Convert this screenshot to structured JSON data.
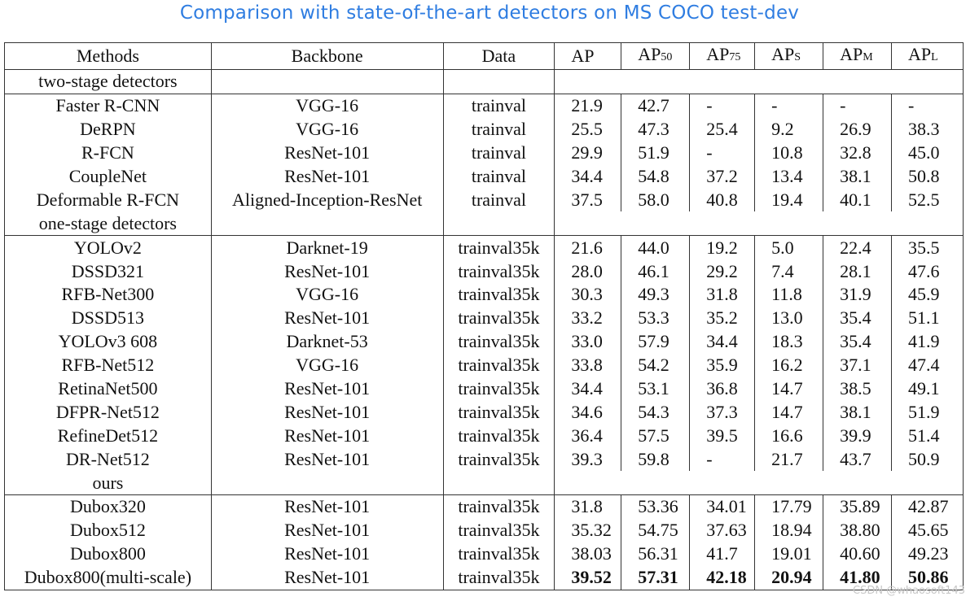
{
  "caption": "Comparison with state-of-the-art detectors on MS COCO test-dev",
  "watermark": "CSDN @whaosoft143",
  "headers": {
    "methods": "Methods",
    "backbone": "Backbone",
    "data": "Data",
    "ap": "AP",
    "ap50_main": "AP",
    "ap50_sub": "50",
    "ap75_main": "AP",
    "ap75_sub": "75",
    "aps_main": "AP",
    "aps_sub": "S",
    "apm_main": "AP",
    "apm_sub": "M",
    "apl_main": "AP",
    "apl_sub": "L"
  },
  "groups": [
    {
      "label": "two-stage detectors",
      "rows": [
        {
          "method": "Faster R-CNN",
          "backbone": "VGG-16",
          "data": "trainval",
          "ap": "21.9",
          "ap50": "42.7",
          "ap75": "-",
          "aps": "-",
          "apm": "-",
          "apl": "-"
        },
        {
          "method": "DeRPN",
          "backbone": "VGG-16",
          "data": "trainval",
          "ap": "25.5",
          "ap50": "47.3",
          "ap75": "25.4",
          "aps": "9.2",
          "apm": "26.9",
          "apl": "38.3"
        },
        {
          "method": "R-FCN",
          "backbone": "ResNet-101",
          "data": "trainval",
          "ap": "29.9",
          "ap50": "51.9",
          "ap75": "-",
          "aps": "10.8",
          "apm": "32.8",
          "apl": "45.0"
        },
        {
          "method": "CoupleNet",
          "backbone": "ResNet-101",
          "data": "trainval",
          "ap": "34.4",
          "ap50": "54.8",
          "ap75": "37.2",
          "aps": "13.4",
          "apm": "38.1",
          "apl": "50.8"
        },
        {
          "method": "Deformable R-FCN",
          "backbone": "Aligned-Inception-ResNet",
          "data": "trainval",
          "ap": "37.5",
          "ap50": "58.0",
          "ap75": "40.8",
          "aps": "19.4",
          "apm": "40.1",
          "apl": "52.5"
        }
      ]
    },
    {
      "label": "one-stage detectors",
      "rows": [
        {
          "method": "YOLOv2",
          "backbone": "Darknet-19",
          "data": "trainval35k",
          "ap": "21.6",
          "ap50": "44.0",
          "ap75": "19.2",
          "aps": "5.0",
          "apm": "22.4",
          "apl": "35.5"
        },
        {
          "method": "DSSD321",
          "backbone": "ResNet-101",
          "data": "trainval35k",
          "ap": "28.0",
          "ap50": "46.1",
          "ap75": "29.2",
          "aps": "7.4",
          "apm": "28.1",
          "apl": "47.6"
        },
        {
          "method": "RFB-Net300",
          "backbone": "VGG-16",
          "data": "trainval35k",
          "ap": "30.3",
          "ap50": "49.3",
          "ap75": "31.8",
          "aps": "11.8",
          "apm": "31.9",
          "apl": "45.9"
        },
        {
          "method": "DSSD513",
          "backbone": "ResNet-101",
          "data": "trainval35k",
          "ap": "33.2",
          "ap50": "53.3",
          "ap75": "35.2",
          "aps": "13.0",
          "apm": "35.4",
          "apl": "51.1"
        },
        {
          "method": "YOLOv3 608",
          "backbone": "Darknet-53",
          "data": "trainval35k",
          "ap": "33.0",
          "ap50": "57.9",
          "ap75": "34.4",
          "aps": "18.3",
          "apm": "35.4",
          "apl": "41.9"
        },
        {
          "method": "RFB-Net512",
          "backbone": "VGG-16",
          "data": "trainval35k",
          "ap": "33.8",
          "ap50": "54.2",
          "ap75": "35.9",
          "aps": "16.2",
          "apm": "37.1",
          "apl": "47.4"
        },
        {
          "method": "RetinaNet500",
          "backbone": "ResNet-101",
          "data": "trainval35k",
          "ap": "34.4",
          "ap50": "53.1",
          "ap75": "36.8",
          "aps": "14.7",
          "apm": "38.5",
          "apl": "49.1"
        },
        {
          "method": "DFPR-Net512",
          "backbone": "ResNet-101",
          "data": "trainval35k",
          "ap": "34.6",
          "ap50": "54.3",
          "ap75": "37.3",
          "aps": "14.7",
          "apm": "38.1",
          "apl": "51.9"
        },
        {
          "method": "RefineDet512",
          "backbone": "ResNet-101",
          "data": "trainval35k",
          "ap": "36.4",
          "ap50": "57.5",
          "ap75": "39.5",
          "aps": "16.6",
          "apm": "39.9",
          "apl": "51.4"
        },
        {
          "method": "DR-Net512",
          "backbone": "ResNet-101",
          "data": "trainval35k",
          "ap": "39.3",
          "ap50": "59.8",
          "ap75": "-",
          "aps": "21.7",
          "apm": "43.7",
          "apl": "50.9"
        }
      ]
    },
    {
      "label": "ours",
      "rows": [
        {
          "method": "Dubox320",
          "backbone": "ResNet-101",
          "data": "trainval35k",
          "ap": "31.8",
          "ap50": "53.36",
          "ap75": "34.01",
          "aps": "17.79",
          "apm": "35.89",
          "apl": "42.87"
        },
        {
          "method": "Dubox512",
          "backbone": "ResNet-101",
          "data": "trainval35k",
          "ap": "35.32",
          "ap50": "54.75",
          "ap75": "37.63",
          "aps": "18.94",
          "apm": "38.80",
          "apl": "45.65"
        },
        {
          "method": "Dubox800",
          "backbone": "ResNet-101",
          "data": "trainval35k",
          "ap": "38.03",
          "ap50": "56.31",
          "ap75": "41.7",
          "aps": "19.01",
          "apm": "40.60",
          "apl": "49.23"
        },
        {
          "method": "Dubox800(multi-scale)",
          "backbone": "ResNet-101",
          "data": "trainval35k",
          "ap": "39.52",
          "ap50": "57.31",
          "ap75": "42.18",
          "aps": "20.94",
          "apm": "41.80",
          "apl": "50.86",
          "bold": true
        }
      ]
    }
  ]
}
